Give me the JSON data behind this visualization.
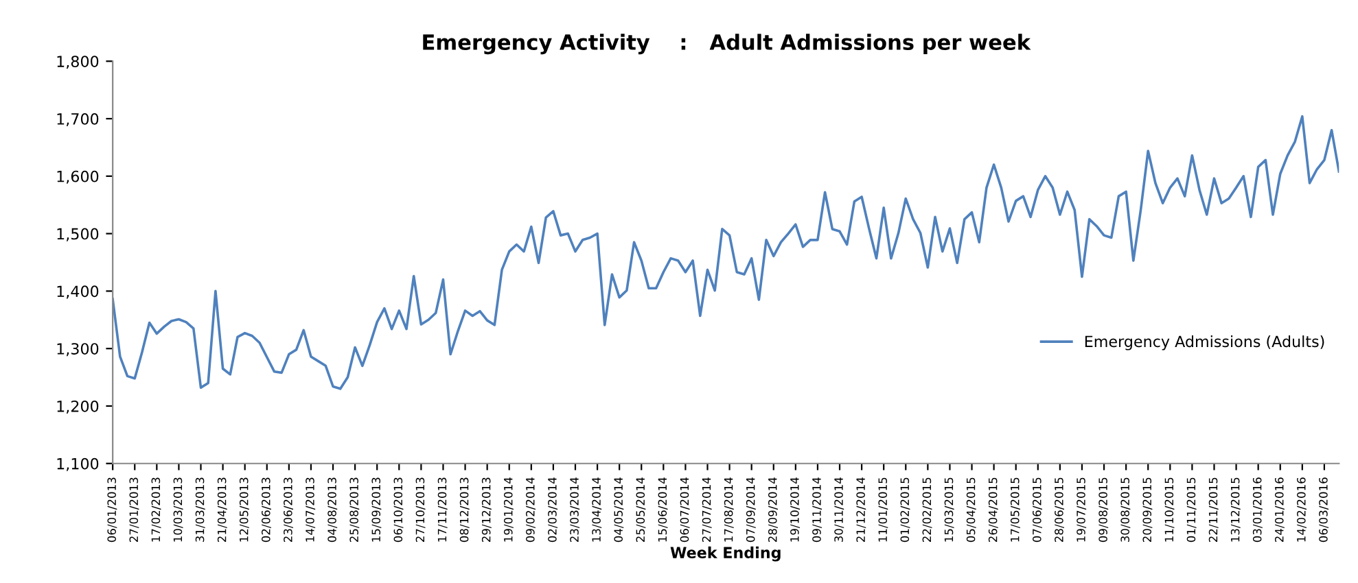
{
  "chart_data": {
    "type": "line",
    "title": "Emergency Activity    :   Adult Admissions per week",
    "xlabel": "Week Ending",
    "categories": [
      "06/01/2013",
      null,
      null,
      "27/01/2013",
      null,
      null,
      "17/02/2013",
      null,
      null,
      "10/03/2013",
      null,
      null,
      "31/03/2013",
      null,
      null,
      "21/04/2013",
      null,
      null,
      "12/05/2013",
      null,
      null,
      "02/06/2013",
      null,
      null,
      "23/06/2013",
      null,
      null,
      "14/07/2013",
      null,
      null,
      "04/08/2013",
      null,
      null,
      "25/08/2013",
      null,
      null,
      "15/09/2013",
      null,
      null,
      "06/10/2013",
      null,
      null,
      "27/10/2013",
      null,
      null,
      "17/11/2013",
      null,
      null,
      "08/12/2013",
      null,
      null,
      "29/12/2013",
      null,
      null,
      "19/01/2014",
      null,
      null,
      "09/02/2014",
      null,
      null,
      "02/03/2014",
      null,
      null,
      "23/03/2014",
      null,
      null,
      "13/04/2014",
      null,
      null,
      "04/05/2014",
      null,
      null,
      "25/05/2014",
      null,
      null,
      "15/06/2014",
      null,
      null,
      "06/07/2014",
      null,
      null,
      "27/07/2014",
      null,
      null,
      "17/08/2014",
      null,
      null,
      "07/09/2014",
      null,
      null,
      "28/09/2014",
      null,
      null,
      "19/10/2014",
      null,
      null,
      "09/11/2014",
      null,
      null,
      "30/11/2014",
      null,
      null,
      "21/12/2014",
      null,
      null,
      "11/01/2015",
      null,
      null,
      "01/02/2015",
      null,
      null,
      "22/02/2015",
      null,
      null,
      "15/03/2015",
      null,
      null,
      "05/04/2015",
      null,
      null,
      "26/04/2015",
      null,
      null,
      "17/05/2015",
      null,
      null,
      "07/06/2015",
      null,
      null,
      "28/06/2015",
      null,
      null,
      "19/07/2015",
      null,
      null,
      "09/08/2015",
      null,
      null,
      "30/08/2015",
      null,
      null,
      "20/09/2015",
      null,
      null,
      "11/10/2015",
      null,
      null,
      "01/11/2015",
      null,
      null,
      "22/11/2015",
      null,
      null,
      "13/12/2015",
      null,
      null,
      "03/01/2016",
      null,
      null,
      "24/01/2016",
      null,
      null,
      "14/02/2016",
      null,
      null,
      "06/03/2016",
      null,
      null
    ],
    "series": [
      {
        "name": "Emergency Admissions (Adults)",
        "color": "#4f81bd",
        "values": [
          1386,
          1286,
          1252,
          1248,
          1294,
          1345,
          1326,
          1338,
          1348,
          1351,
          1346,
          1335,
          1232,
          1240,
          1400,
          1265,
          1255,
          1320,
          1327,
          1322,
          1310,
          1285,
          1260,
          1258,
          1290,
          1298,
          1332,
          1286,
          1278,
          1270,
          1234,
          1230,
          1250,
          1302,
          1270,
          1306,
          1346,
          1370,
          1334,
          1366,
          1334,
          1426,
          1342,
          1350,
          1362,
          1420,
          1290,
          1330,
          1366,
          1357,
          1365,
          1349,
          1341,
          1437,
          1469,
          1481,
          1469,
          1512,
          1449,
          1528,
          1539,
          1497,
          1500,
          1469,
          1489,
          1493,
          1500,
          1341,
          1429,
          1389,
          1401,
          1485,
          1453,
          1405,
          1405,
          1433,
          1457,
          1453,
          1433,
          1453,
          1357,
          1437,
          1401,
          1508,
          1497,
          1433,
          1429,
          1457,
          1385,
          1489,
          1461,
          1485,
          1500,
          1516,
          1477,
          1489,
          1489,
          1572,
          1508,
          1504,
          1481,
          1556,
          1564,
          1509,
          1457,
          1545,
          1457,
          1501,
          1561,
          1525,
          1501,
          1441,
          1529,
          1469,
          1509,
          1449,
          1525,
          1537,
          1485,
          1580,
          1620,
          1580,
          1521,
          1557,
          1565,
          1529,
          1576,
          1600,
          1580,
          1533,
          1573,
          1541,
          1425,
          1525,
          1513,
          1497,
          1493,
          1565,
          1573,
          1453,
          1541,
          1644,
          1588,
          1553,
          1580,
          1596,
          1565,
          1636,
          1576,
          1533,
          1596,
          1553,
          1561,
          1580,
          1600,
          1529,
          1616,
          1628,
          1533,
          1604,
          1636,
          1660,
          1704,
          1588,
          1612,
          1628,
          1680,
          1608
        ]
      }
    ],
    "ylim": [
      1100,
      1800
    ],
    "yticks": [
      {
        "value": 1100,
        "label": "1,100"
      },
      {
        "value": 1200,
        "label": "1,200"
      },
      {
        "value": 1300,
        "label": "1,300"
      },
      {
        "value": 1400,
        "label": "1,400"
      },
      {
        "value": 1500,
        "label": "1,500"
      },
      {
        "value": 1600,
        "label": "1,600"
      },
      {
        "value": 1700,
        "label": "1,700"
      },
      {
        "value": 1800,
        "label": "1,800"
      }
    ],
    "grid": false,
    "legend": "right",
    "marker": "none",
    "line_style": "solid"
  }
}
